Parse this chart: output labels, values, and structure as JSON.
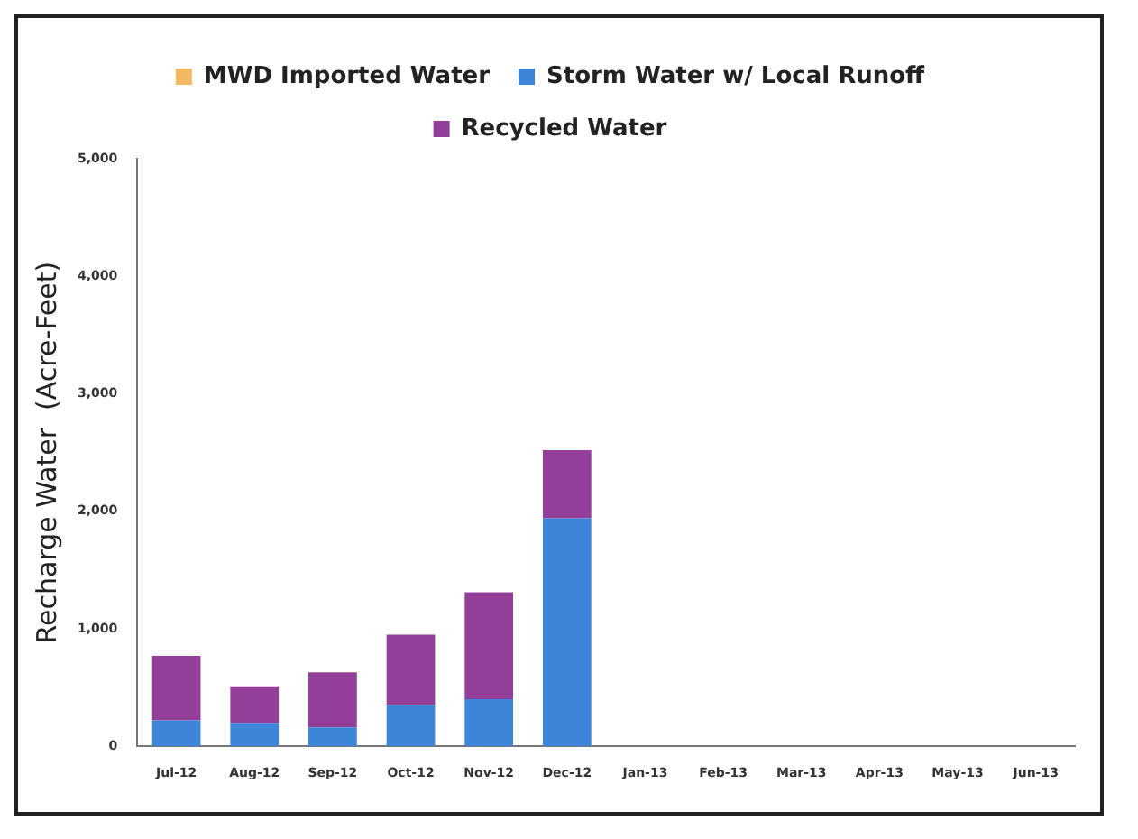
{
  "chart_data": {
    "type": "bar",
    "stacked": true,
    "ylabel": "Recharge Water  (Acre-Feet)",
    "categories": [
      "Jul-12",
      "Aug-12",
      "Sep-12",
      "Oct-12",
      "Nov-12",
      "Dec-12",
      "Jan-13",
      "Feb-13",
      "Mar-13",
      "Apr-13",
      "May-13",
      "Jun-13"
    ],
    "series": [
      {
        "name": "MWD Imported Water",
        "color": "#f4b860",
        "values": [
          0,
          0,
          0,
          0,
          0,
          0,
          null,
          null,
          null,
          null,
          null,
          null
        ]
      },
      {
        "name": "Storm Water w/ Local Runoff",
        "color": "#3d85d8",
        "values": [
          220,
          200,
          160,
          350,
          400,
          1940,
          null,
          null,
          null,
          null,
          null,
          null
        ]
      },
      {
        "name": "Recycled Water",
        "color": "#933f9a",
        "values": [
          550,
          310,
          470,
          600,
          910,
          580,
          null,
          null,
          null,
          null,
          null,
          null
        ]
      }
    ],
    "ylim": [
      0,
      5000
    ],
    "yticks": [
      {
        "value": 0,
        "label": "0"
      },
      {
        "value": 1000,
        "label": "1,000"
      },
      {
        "value": 2000,
        "label": "2,000"
      },
      {
        "value": 3000,
        "label": "3,000"
      },
      {
        "value": 4000,
        "label": "4,000"
      },
      {
        "value": 5000,
        "label": "5,000"
      }
    ],
    "grid": false,
    "legend": "top"
  }
}
